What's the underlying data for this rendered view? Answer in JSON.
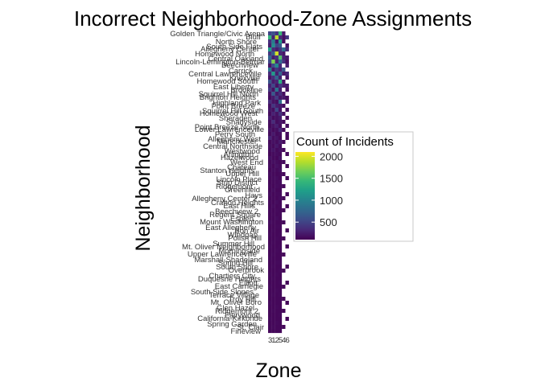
{
  "chart_data": {
    "type": "heatmap",
    "title": "Incorrect Neighborhood-Zone Assignments",
    "xlabel": "Zone",
    "ylabel": "Neighborhood",
    "x_categories": [
      "3",
      "1",
      "2",
      "5",
      "4",
      "6"
    ],
    "neighborhoods": [
      "Golden Triangle/Civic Arena",
      "Bluff",
      "North Shore",
      "South Side Flats",
      "Allegheny Center",
      "Homewood North",
      "Central Oakland",
      "Lincoln-Lemington-Belmar",
      "Beechview",
      "Carrick",
      "Central Lawrenceville",
      "Knoxville",
      "Homewood South",
      "East Liberty",
      "Brookline",
      "Squirrel Hill North",
      "Brighton Heights",
      "Highland Park",
      "Point Breeze",
      "Squirrel Hill South",
      "Homewood West",
      "Sheraden",
      "Shadyside",
      "Point Breeze North",
      "Lower Lawrenceville",
      "Perry South",
      "Allegheny West",
      "Manchester",
      "Central Northside",
      "Westwood",
      "Arlington",
      "Hazelwood",
      "West End",
      "Chateau",
      "Stanton Heights",
      "Upper Hill",
      "Lincoln Place",
      "Strip District",
      "Ridgemont",
      "Greenfield",
      "Hays",
      "Allegheny Center 2",
      "Crafton Heights",
      "East Hills",
      "Beechview 2",
      "Regent Square",
      "Esplen",
      "Mount Washington",
      "East Allegheny",
      "Bon Air",
      "Windgap",
      "Polish Hill",
      "Summer Hill",
      "Mt. Oliver Neighborhood",
      "Morningside",
      "Upper Lawrenceville",
      "Marshall-Shadeland",
      "Spring Hill",
      "South Shore",
      "Overbrook",
      "Chartiers City",
      "Duquesne Heights",
      "Elliott",
      "East Carnegie",
      "South Side Slopes",
      "Terrace Village",
      "Troy Hill",
      "Mt. Oliver Boro",
      "Glen Hazel",
      "Ridgemont 2",
      "Fairywood",
      "California-Kirkbride",
      "Spring Garden",
      "St. Clair",
      "Fineview"
    ],
    "row_text_offsets": [
      0,
      -1,
      0,
      1,
      -1,
      0,
      1,
      0,
      -1,
      1,
      0,
      0,
      -1,
      1,
      0,
      0,
      -1,
      1,
      0,
      1,
      -1,
      0,
      0,
      1,
      -1,
      0,
      1,
      -1,
      0,
      1,
      0,
      -1,
      0,
      1,
      0,
      -1,
      1,
      0,
      0,
      -1,
      1,
      0,
      0,
      -1,
      1,
      0,
      0,
      -1,
      1,
      0,
      0,
      -1,
      1,
      0,
      0,
      -1,
      1,
      0,
      0,
      -1,
      1,
      0,
      0,
      -1,
      1,
      0,
      0,
      -1,
      1,
      0,
      0,
      -1,
      1,
      0,
      0
    ],
    "label_shifts": [
      0,
      -5,
      -10,
      -3,
      -7,
      -13,
      -2,
      0,
      -8,
      -15,
      -4,
      -6,
      -9,
      -14,
      -3,
      -8,
      -11,
      -5,
      -12,
      -2,
      -9,
      -16,
      -4,
      -7,
      -1,
      -12,
      -5,
      -10,
      -3,
      -6,
      -14,
      -8,
      -2,
      -11,
      -13,
      -7,
      -4,
      -9,
      -15,
      -6,
      -3,
      -10,
      -1,
      -12,
      -8,
      -5,
      -14,
      -2,
      -11,
      -7,
      -9,
      -4,
      -13,
      0,
      -6,
      -10,
      -3,
      -15,
      -8,
      -1,
      -12,
      -5,
      -9,
      -2,
      -14,
      -7,
      -11,
      -4,
      -13,
      -8,
      -6,
      -3,
      -10,
      -1,
      -5
    ],
    "values": [
      [
        512,
        604,
        395,
        1450,
        240,
        0
      ],
      [
        1410,
        300,
        1890,
        340,
        180,
        420
      ],
      [
        380,
        920,
        210,
        1220,
        150,
        0
      ],
      [
        260,
        1080,
        510,
        640,
        0,
        190
      ],
      [
        1200,
        340,
        260,
        420,
        800,
        330
      ],
      [
        420,
        680,
        1960,
        310,
        210,
        0
      ],
      [
        750,
        260,
        380,
        1550,
        290,
        240
      ],
      [
        530,
        1700,
        280,
        820,
        400,
        170
      ],
      [
        210,
        560,
        1040,
        330,
        0,
        260
      ],
      [
        880,
        220,
        430,
        290,
        640,
        0
      ],
      [
        340,
        1180,
        270,
        720,
        220,
        310
      ],
      [
        220,
        360,
        740,
        280,
        0,
        190
      ],
      [
        610,
        240,
        310,
        1330,
        190,
        0
      ],
      [
        290,
        520,
        200,
        410,
        260,
        230
      ],
      [
        430,
        190,
        860,
        250,
        0,
        170
      ],
      [
        200,
        650,
        230,
        360,
        170,
        0
      ],
      [
        170,
        240,
        450,
        210,
        240,
        150
      ],
      [
        350,
        200,
        180,
        790,
        0,
        180
      ],
      [
        190,
        410,
        260,
        230,
        160,
        0
      ],
      [
        230,
        180,
        520,
        190,
        0,
        150
      ],
      [
        160,
        290,
        200,
        380,
        180,
        0
      ],
      [
        270,
        160,
        190,
        240,
        0,
        140
      ],
      [
        180,
        350,
        160,
        210,
        150,
        0
      ],
      [
        150,
        200,
        270,
        170,
        0,
        160
      ],
      [
        210,
        150,
        180,
        320,
        140,
        0
      ],
      [
        160,
        240,
        150,
        180,
        0,
        150
      ],
      [
        300,
        170,
        210,
        150,
        0,
        140
      ],
      [
        150,
        190,
        160,
        240,
        150,
        0
      ],
      [
        180,
        150,
        230,
        160,
        0,
        0
      ],
      [
        160,
        210,
        150,
        190,
        140,
        0
      ],
      [
        140,
        160,
        170,
        150,
        0,
        150
      ],
      [
        190,
        150,
        140,
        200,
        0,
        0
      ],
      [
        150,
        180,
        160,
        140,
        150,
        0
      ],
      [
        170,
        140,
        190,
        160,
        0,
        140
      ],
      [
        140,
        170,
        150,
        180,
        0,
        0
      ],
      [
        160,
        150,
        140,
        150,
        140,
        0
      ],
      [
        150,
        160,
        170,
        140,
        0,
        150
      ],
      [
        140,
        150,
        150,
        160,
        0,
        0
      ],
      [
        150,
        140,
        160,
        150,
        140,
        0
      ],
      [
        140,
        170,
        140,
        140,
        0,
        0
      ],
      [
        160,
        140,
        150,
        150,
        0,
        140
      ],
      [
        140,
        150,
        140,
        160,
        140,
        0
      ],
      [
        150,
        140,
        160,
        140,
        0,
        0
      ],
      [
        140,
        160,
        140,
        150,
        0,
        140
      ],
      [
        150,
        140,
        150,
        140,
        140,
        0
      ],
      [
        140,
        150,
        140,
        150,
        0,
        0
      ],
      [
        140,
        140,
        160,
        140,
        0,
        0
      ],
      [
        160,
        150,
        140,
        140,
        140,
        0
      ],
      [
        140,
        140,
        150,
        150,
        0,
        0
      ],
      [
        140,
        150,
        140,
        140,
        0,
        140
      ],
      [
        150,
        140,
        140,
        150,
        0,
        0
      ],
      [
        140,
        140,
        150,
        140,
        140,
        0
      ],
      [
        140,
        150,
        140,
        140,
        0,
        0
      ],
      [
        150,
        140,
        140,
        150,
        0,
        140
      ],
      [
        140,
        140,
        150,
        140,
        0,
        0
      ],
      [
        140,
        150,
        140,
        140,
        140,
        0
      ],
      [
        150,
        140,
        140,
        140,
        0,
        0
      ],
      [
        140,
        140,
        150,
        150,
        0,
        0
      ],
      [
        140,
        150,
        140,
        140,
        0,
        140
      ],
      [
        140,
        140,
        140,
        150,
        140,
        0
      ],
      [
        150,
        140,
        150,
        140,
        0,
        0
      ],
      [
        140,
        150,
        140,
        140,
        0,
        0
      ],
      [
        140,
        140,
        140,
        150,
        0,
        140
      ],
      [
        150,
        140,
        140,
        140,
        140,
        0
      ],
      [
        140,
        140,
        150,
        140,
        0,
        0
      ],
      [
        140,
        150,
        140,
        150,
        0,
        0
      ],
      [
        140,
        140,
        140,
        140,
        140,
        0
      ],
      [
        150,
        140,
        140,
        140,
        0,
        140
      ],
      [
        140,
        140,
        150,
        140,
        0,
        0
      ],
      [
        140,
        150,
        140,
        140,
        140,
        0
      ],
      [
        140,
        140,
        140,
        150,
        0,
        0
      ],
      [
        150,
        140,
        140,
        140,
        0,
        140
      ],
      [
        140,
        140,
        150,
        140,
        0,
        0
      ],
      [
        140,
        150,
        140,
        140,
        140,
        0
      ],
      [
        140,
        140,
        140,
        140,
        0,
        0
      ]
    ],
    "color_scale": {
      "name": "viridis",
      "min": 100,
      "max": 2100,
      "stops": [
        "#440154",
        "#482878",
        "#3e4a89",
        "#31688e",
        "#26828e",
        "#1f9e89",
        "#35b779",
        "#6ece58",
        "#b5de2b",
        "#fde725"
      ]
    },
    "legend": {
      "title": "Count of Incidents",
      "ticks": [
        500,
        1000,
        1500,
        2000
      ],
      "placement": "right"
    },
    "missing_color": "#ffffff"
  }
}
